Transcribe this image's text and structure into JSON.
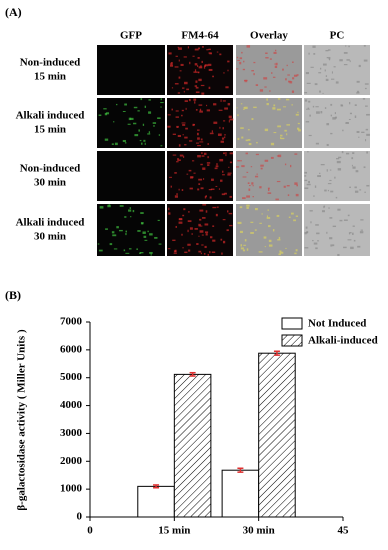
{
  "panel_a": {
    "label": "(A)",
    "columns": [
      "GFP",
      "FM4-64",
      "Overlay",
      "PC"
    ],
    "rows": [
      [
        "Non-induced",
        "15 min"
      ],
      [
        "Alkali induced",
        "15 min"
      ],
      [
        "Non-induced",
        "30 min"
      ],
      [
        "Alkali induced",
        "30 min"
      ]
    ]
  },
  "chart_data": {
    "type": "bar",
    "panel_label": "(B)",
    "y_label": "β-galactosidase activity ( Miller Units )",
    "x": [
      15,
      30
    ],
    "xlim": [
      0,
      45
    ],
    "xticks": [
      0,
      {
        "value": 15,
        "label": "15 min"
      },
      {
        "value": 30,
        "label": "30 min"
      },
      45
    ],
    "ylim": [
      0,
      7000
    ],
    "yticks": [
      0,
      1000,
      2000,
      3000,
      4000,
      5000,
      6000,
      7000
    ],
    "error_color": "#e03030",
    "series": [
      {
        "name": "Not Induced",
        "color": "#ffffff",
        "hatch": false,
        "values": [
          1100,
          1680
        ],
        "errors": [
          50,
          70
        ]
      },
      {
        "name": "Alkali-induced",
        "color": "#ffffff",
        "hatch": true,
        "values": [
          5120,
          5880
        ],
        "errors": [
          60,
          70
        ]
      }
    ],
    "legend": "upper right"
  }
}
